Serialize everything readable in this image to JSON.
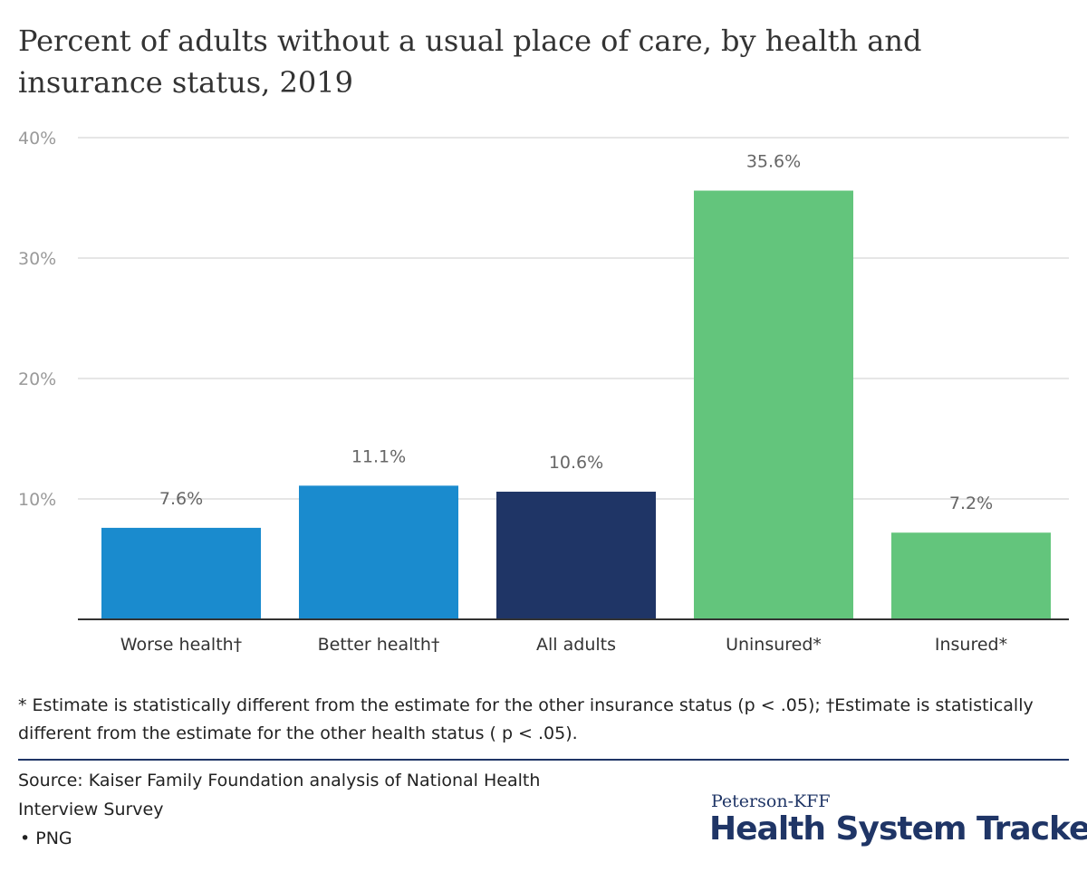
{
  "title": "Percent of adults without a usual place of care, by health and insurance status, 2019",
  "footnote": "* Estimate is statistically different from the estimate for the other insurance status (p < .05); †Estimate is statistically different from the estimate for the other health status ( p < .05).",
  "source": "Source: Kaiser Family Foundation analysis of National Health Interview Survey",
  "png_link": "• PNG",
  "logo": {
    "top": "Peterson-KFF",
    "main": "Health System Tracker"
  },
  "colors": {
    "axis_text": "#9a9a9a",
    "label_text": "#666666",
    "category_text": "#333333",
    "grid": "#dddddd",
    "baseline": "#333333",
    "brand": "#1f3566"
  },
  "chart_data": {
    "type": "bar",
    "categories": [
      "Worse health†",
      "Better health†",
      "All adults",
      "Uninsured*",
      "Insured*"
    ],
    "values": [
      7.6,
      11.1,
      10.6,
      35.6,
      7.2
    ],
    "data_labels": [
      "7.6%",
      "11.1%",
      "10.6%",
      "35.6%",
      "7.2%"
    ],
    "bar_colors": [
      "#1a8bce",
      "#1a8bce",
      "#1f3566",
      "#63c57c",
      "#63c57c"
    ],
    "ylim": [
      0,
      40
    ],
    "yticks": [
      10,
      20,
      30,
      40
    ],
    "ytick_labels": [
      "10%",
      "20%",
      "30%",
      "40%"
    ],
    "xlabel": "",
    "ylabel": "",
    "grid": true
  }
}
